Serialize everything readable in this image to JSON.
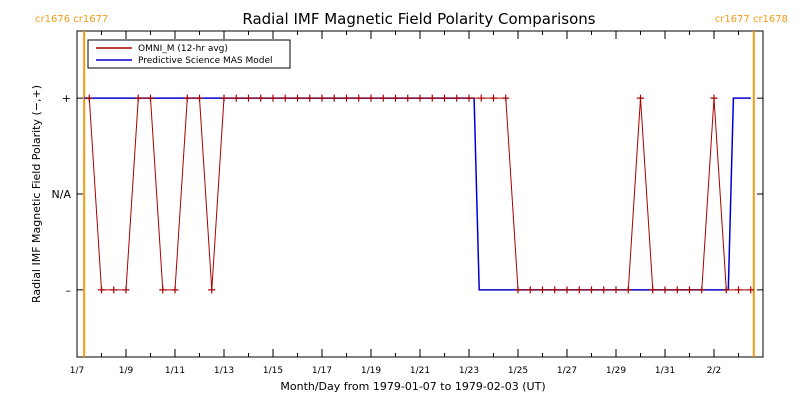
{
  "chart_data": {
    "type": "line",
    "title": "Radial IMF Magnetic Field Polarity Comparisons",
    "xlabel": "Month/Day from 1979-01-07 to 1979-02-03 (UT)",
    "ylabel": "Radial IMF Magnetic Field Polarity (−,+)",
    "xlim": [
      "1979-01-07",
      "1979-02-03"
    ],
    "ylim": [
      -1.7,
      1.7
    ],
    "y_ticks": [
      {
        "value": 1,
        "label": "+"
      },
      {
        "value": 0,
        "label": "N/A"
      },
      {
        "value": -1,
        "label": "–"
      }
    ],
    "x_ticks": [
      "1/7",
      "1/9",
      "1/11",
      "1/13",
      "1/15",
      "1/17",
      "1/19",
      "1/21",
      "1/23",
      "1/25",
      "1/27",
      "1/29",
      "1/31",
      "2/2"
    ],
    "grid": false,
    "legend": "top-left",
    "carrington_markers": [
      {
        "label": "cr1676 cr1677",
        "x": "1979-01-07T07:00"
      },
      {
        "label": "cr1677 cr1678",
        "x": "1979-02-03T15:00"
      }
    ],
    "marker_color": "#f39c12",
    "series": [
      {
        "name": "OMNI_M (12-hr avg)",
        "color": "#aa0000",
        "marker": "+",
        "x": [
          "1979-01-07T12:00",
          "1979-01-08T00:00",
          "1979-01-08T12:00",
          "1979-01-09T00:00",
          "1979-01-09T12:00",
          "1979-01-10T00:00",
          "1979-01-10T12:00",
          "1979-01-11T00:00",
          "1979-01-11T12:00",
          "1979-01-12T00:00",
          "1979-01-12T12:00",
          "1979-01-13T00:00",
          "1979-01-13T12:00",
          "1979-01-14T00:00",
          "1979-01-14T12:00",
          "1979-01-15T00:00",
          "1979-01-15T12:00",
          "1979-01-16T00:00",
          "1979-01-16T12:00",
          "1979-01-17T00:00",
          "1979-01-17T12:00",
          "1979-01-18T00:00",
          "1979-01-18T12:00",
          "1979-01-19T00:00",
          "1979-01-19T12:00",
          "1979-01-20T00:00",
          "1979-01-20T12:00",
          "1979-01-21T00:00",
          "1979-01-21T12:00",
          "1979-01-22T00:00",
          "1979-01-22T12:00",
          "1979-01-23T00:00",
          "1979-01-23T12:00",
          "1979-01-24T00:00",
          "1979-01-24T12:00",
          "1979-01-25T00:00",
          "1979-01-25T12:00",
          "1979-01-26T00:00",
          "1979-01-26T12:00",
          "1979-01-27T00:00",
          "1979-01-27T12:00",
          "1979-01-28T00:00",
          "1979-01-28T12:00",
          "1979-01-29T00:00",
          "1979-01-29T12:00",
          "1979-01-30T00:00",
          "1979-01-30T12:00",
          "1979-01-31T00:00",
          "1979-01-31T12:00",
          "1979-02-01T00:00",
          "1979-02-01T12:00",
          "1979-02-02T00:00",
          "1979-02-02T12:00",
          "1979-02-03T00:00",
          "1979-02-03T12:00"
        ],
        "y": [
          1,
          -1,
          -1,
          -1,
          1,
          1,
          -1,
          -1,
          1,
          1,
          -1,
          1,
          1,
          1,
          1,
          1,
          1,
          1,
          1,
          1,
          1,
          1,
          1,
          1,
          1,
          1,
          1,
          1,
          1,
          1,
          1,
          1,
          1,
          1,
          1,
          -1,
          -1,
          -1,
          -1,
          -1,
          -1,
          -1,
          -1,
          -1,
          -1,
          1,
          -1,
          -1,
          -1,
          -1,
          -1,
          1,
          -1,
          -1,
          -1
        ]
      },
      {
        "name": "Predictive Science MAS Model",
        "color": "#0000cc",
        "step": [
          {
            "x": "1979-01-07T07:00",
            "y": 1
          },
          {
            "x": "1979-01-23T05:00",
            "y": 1
          },
          {
            "x": "1979-01-23T10:00",
            "y": -1
          },
          {
            "x": "1979-02-02T14:00",
            "y": -1
          },
          {
            "x": "1979-02-02T19:00",
            "y": 1
          },
          {
            "x": "1979-02-03T12:00",
            "y": 1
          }
        ]
      }
    ]
  }
}
